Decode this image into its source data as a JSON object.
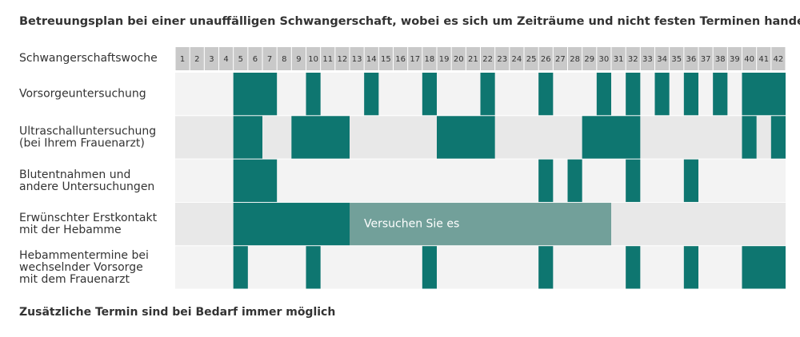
{
  "chart_data": {
    "type": "timeline",
    "title": "Betreuungsplan bei einer unauffälligen Schwangerschaft, wobei es sich um Zeiträume und nicht festen Terminen handelt.",
    "axis_label": "Schwangerschaftswoche",
    "weeks": [
      1,
      2,
      3,
      4,
      5,
      6,
      7,
      8,
      9,
      10,
      11,
      12,
      13,
      14,
      15,
      16,
      17,
      18,
      19,
      20,
      21,
      22,
      23,
      24,
      25,
      26,
      27,
      28,
      29,
      30,
      31,
      32,
      33,
      34,
      35,
      36,
      37,
      38,
      39,
      40,
      41,
      42
    ],
    "color": "#0e7670",
    "rows": [
      {
        "label": [
          "Vorsorgeuntersuchung"
        ],
        "spans": [
          [
            5,
            7
          ],
          [
            10,
            10
          ],
          [
            14,
            14
          ],
          [
            18,
            18
          ],
          [
            22,
            22
          ],
          [
            26,
            26
          ],
          [
            30,
            30
          ],
          [
            32,
            32
          ],
          [
            34,
            34
          ],
          [
            36,
            36
          ],
          [
            38,
            38
          ],
          [
            40,
            42
          ]
        ]
      },
      {
        "label": [
          "Ultraschalluntersuchung",
          "(bei Ihrem Frauenarzt)"
        ],
        "spans": [
          [
            5,
            6
          ],
          [
            9,
            12
          ],
          [
            19,
            22
          ],
          [
            29,
            32
          ],
          [
            40,
            40
          ],
          [
            42,
            42
          ]
        ]
      },
      {
        "label": [
          "Blutentnahmen und",
          "andere Untersuchungen"
        ],
        "spans": [
          [
            5,
            7
          ],
          [
            26,
            26
          ],
          [
            28,
            28
          ],
          [
            32,
            32
          ],
          [
            36,
            36
          ]
        ]
      },
      {
        "label": [
          "Erwünschter Erstkontakt",
          "mit der Hebamme"
        ],
        "spans": [
          [
            5,
            12
          ]
        ],
        "attempt": {
          "start": 13,
          "end": 30,
          "label": "Versuchen Sie es",
          "color": "#72a09a"
        }
      },
      {
        "label": [
          "Hebammentermine bei",
          "wechselnder Vorsorge",
          "mit dem Frauenarzt"
        ],
        "spans": [
          [
            5,
            5
          ],
          [
            10,
            10
          ],
          [
            18,
            18
          ],
          [
            26,
            26
          ],
          [
            32,
            32
          ],
          [
            36,
            36
          ],
          [
            40,
            42
          ]
        ]
      }
    ],
    "footnote": "Zusätzliche Termin sind bei Bedarf immer möglich"
  }
}
